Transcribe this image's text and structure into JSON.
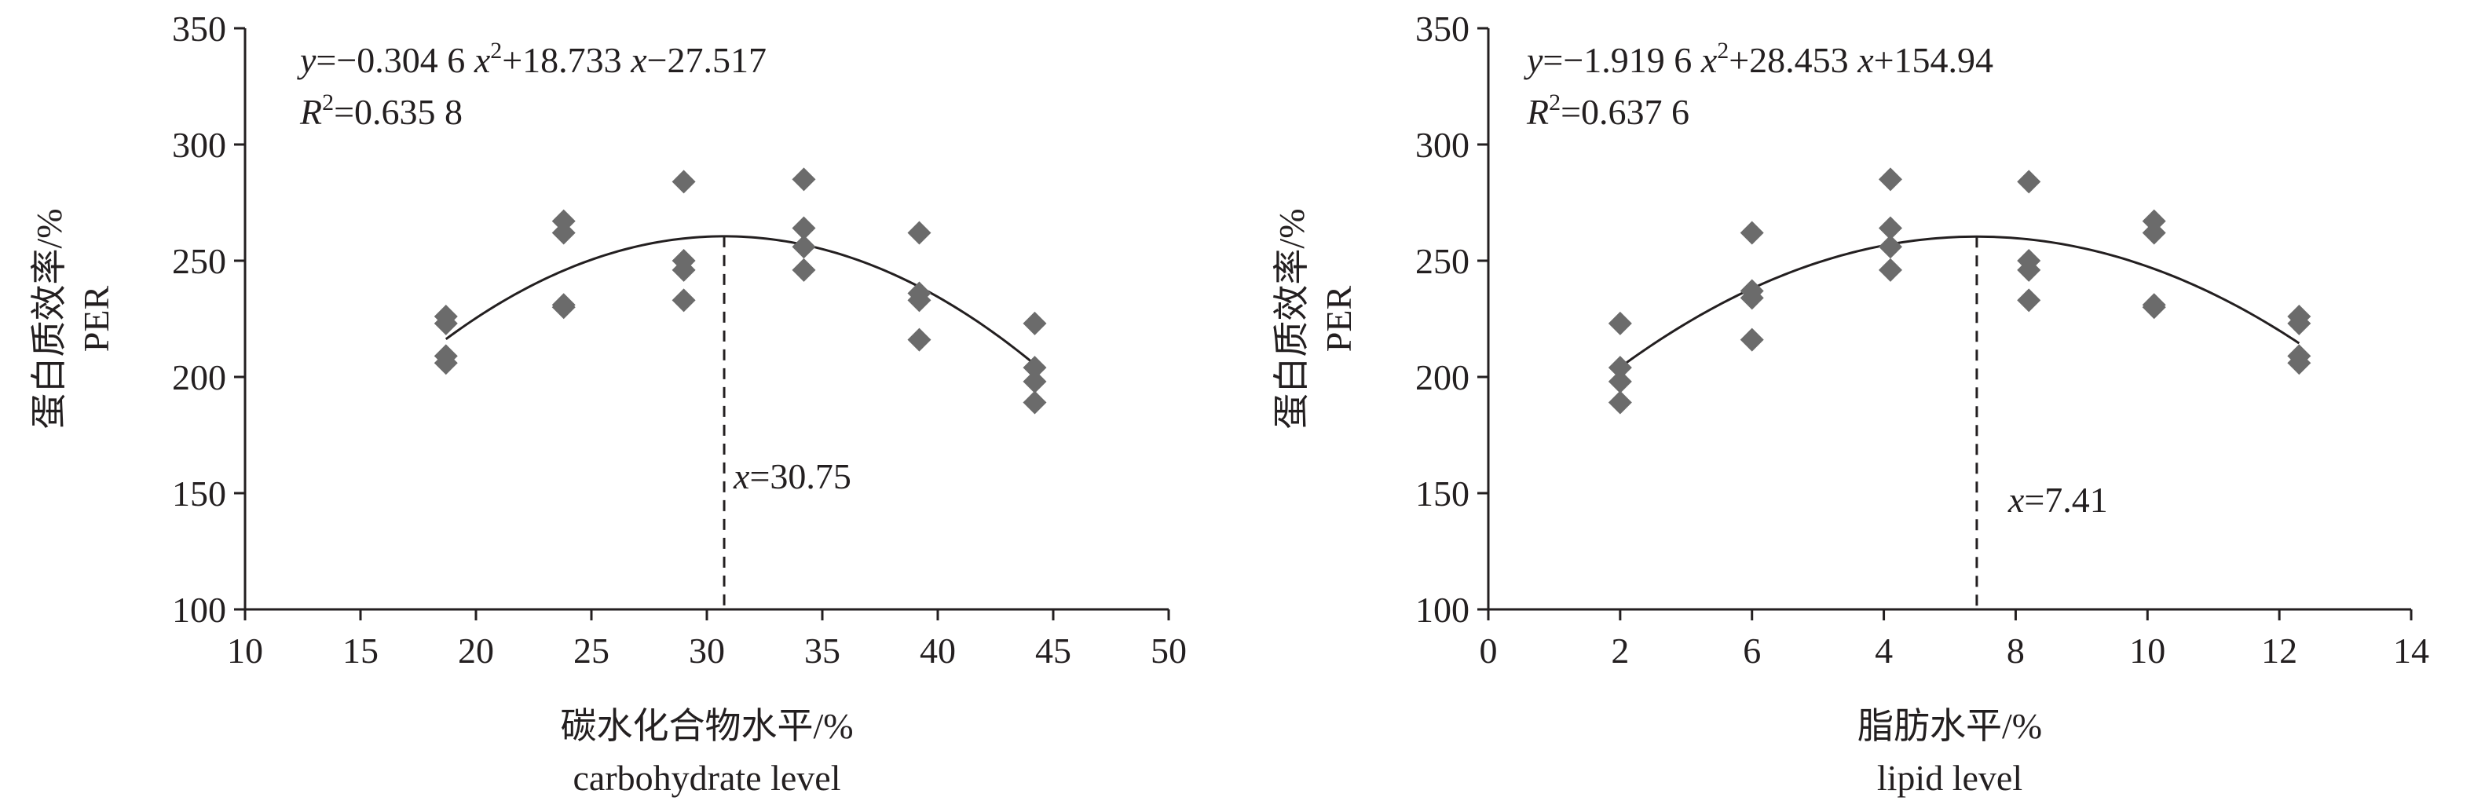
{
  "chart_data": [
    {
      "type": "scatter",
      "xlabel": "碳水化合物水平/%",
      "xlabel_en": "carbohydrate level",
      "ylabel": "蛋白质效率/%",
      "ylabel_en": "PER",
      "xlim": [
        10,
        50
      ],
      "ylim": [
        100,
        350
      ],
      "xticks": [
        "10",
        "15",
        "20",
        "25",
        "30",
        "35",
        "40",
        "45",
        "50"
      ],
      "yticks": [
        "100",
        "150",
        "200",
        "250",
        "300",
        "350"
      ],
      "equation": {
        "y": "y",
        "rhs_1": "=−0.304 6 ",
        "x2": "x",
        "sup": "2",
        "rhs_2": "+18.733 ",
        "x1": "x",
        "rhs_3": "−27.517",
        "r": "R",
        "r_sup": "2",
        "r_val": "=0.635 8"
      },
      "fit": {
        "a": -0.3046,
        "b": 18.733,
        "c": -27.517,
        "x_from": 18.7,
        "x_to": 44.3
      },
      "optimum": {
        "x": 30.75,
        "var": "x",
        "label": "=30.75"
      },
      "points": {
        "x": [
          18.7,
          18.7,
          18.7,
          18.7,
          23.8,
          23.8,
          23.8,
          23.8,
          29.0,
          29.0,
          29.0,
          29.0,
          34.2,
          34.2,
          34.2,
          34.2,
          39.2,
          39.2,
          39.2,
          39.2,
          44.2,
          44.2,
          44.2,
          44.2
        ],
        "y": [
          226,
          223,
          209,
          206,
          267,
          262,
          231,
          230,
          284,
          250,
          246,
          233,
          285,
          264,
          256,
          246,
          262,
          236,
          233,
          216,
          223,
          204,
          198,
          189
        ]
      },
      "marker_color": "#6b6b6b"
    },
    {
      "type": "scatter",
      "xlabel": "脂肪水平/%",
      "xlabel_en": "lipid level",
      "ylabel": "蛋白质效率/%",
      "ylabel_en": "PER",
      "xlim": [
        0,
        14
      ],
      "ylim": [
        100,
        350
      ],
      "xticks": [
        "0",
        "2",
        "6",
        "4",
        "8",
        "10",
        "12",
        "14"
      ],
      "yticks": [
        "100",
        "150",
        "200",
        "250",
        "300",
        "350"
      ],
      "equation": {
        "y": "y",
        "rhs_1": "=−1.919 6 ",
        "x2": "x",
        "sup": "2",
        "rhs_2": "+28.453 ",
        "x1": "x",
        "rhs_3": "+154.94",
        "r": "R",
        "r_sup": "2",
        "r_val": "=0.637 6"
      },
      "fit": {
        "a": -1.9196,
        "b": 28.453,
        "c": 154.94,
        "x_from": 2.0,
        "x_to": 12.3
      },
      "optimum": {
        "x": 7.41,
        "var": "x",
        "label": "=7.41"
      },
      "points": {
        "x": [
          2.0,
          2.0,
          2.0,
          2.0,
          4.0,
          4.0,
          4.0,
          4.0,
          6.1,
          6.1,
          6.1,
          6.1,
          8.2,
          8.2,
          8.2,
          8.2,
          10.1,
          10.1,
          10.1,
          10.1,
          12.3,
          12.3,
          12.3,
          12.3
        ],
        "y": [
          223,
          204,
          198,
          189,
          262,
          237,
          234,
          216,
          285,
          264,
          256,
          246,
          284,
          250,
          246,
          233,
          267,
          262,
          231,
          230,
          226,
          223,
          209,
          206
        ]
      },
      "marker_color": "#6b6b6b"
    }
  ]
}
